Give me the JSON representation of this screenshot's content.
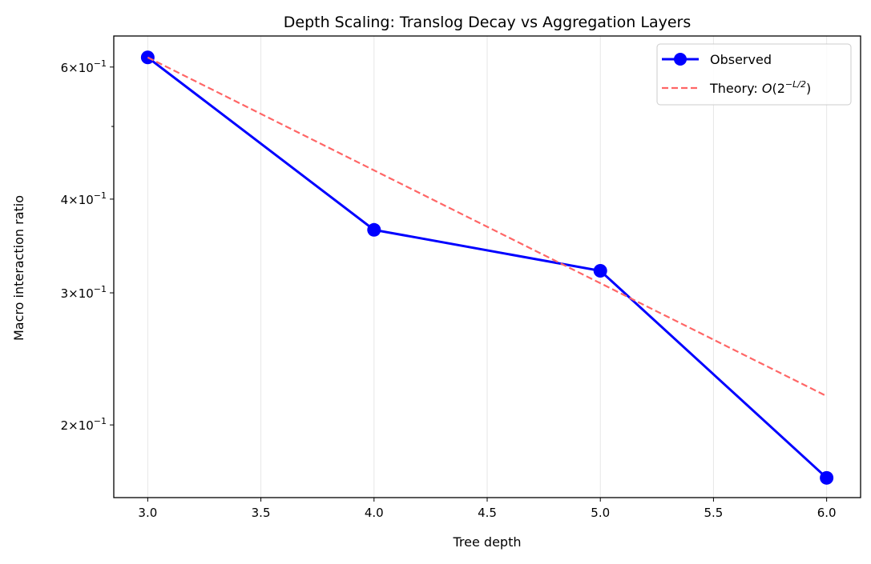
{
  "chart_data": {
    "type": "line",
    "title": "Depth Scaling: Translog Decay vs Aggregation Layers",
    "xlabel": "Tree depth",
    "ylabel": "Macro interaction ratio",
    "xlim": [
      2.85,
      6.15
    ],
    "ylim": [
      0.16,
      0.66
    ],
    "yscale": "log",
    "grid": "x-axis vertical lines, light gray",
    "legend_position": "top-right",
    "x_ticks": [
      3.0,
      3.5,
      4.0,
      4.5,
      5.0,
      5.5,
      6.0
    ],
    "x_tick_labels": [
      "3.0",
      "3.5",
      "4.0",
      "4.5",
      "5.0",
      "5.5",
      "6.0"
    ],
    "y_ticks": [
      0.6,
      0.4,
      0.3,
      0.2
    ],
    "y_tick_labels": [
      {
        "mantissa": "6",
        "exp": "−1"
      },
      {
        "mantissa": "4",
        "exp": "−1"
      },
      {
        "mantissa": "3",
        "exp": "−1"
      },
      {
        "mantissa": "2",
        "exp": "−1"
      }
    ],
    "y_minor_ticks": [
      0.5
    ],
    "series": [
      {
        "name": "Observed",
        "legend_label": "Observed",
        "color": "#0000ff",
        "style": "solid-marker",
        "x": [
          3,
          4,
          5,
          6
        ],
        "y": [
          0.618,
          0.364,
          0.321,
          0.17
        ]
      },
      {
        "name": "Theory",
        "legend_label": "Theory: ",
        "legend_math": {
          "O": "O",
          "base": "(2",
          "sup": "−L/2",
          "close": ")"
        },
        "color": "#ff6666",
        "style": "dashed",
        "x": [
          3,
          6
        ],
        "y": [
          0.618,
          0.2185
        ]
      }
    ]
  }
}
